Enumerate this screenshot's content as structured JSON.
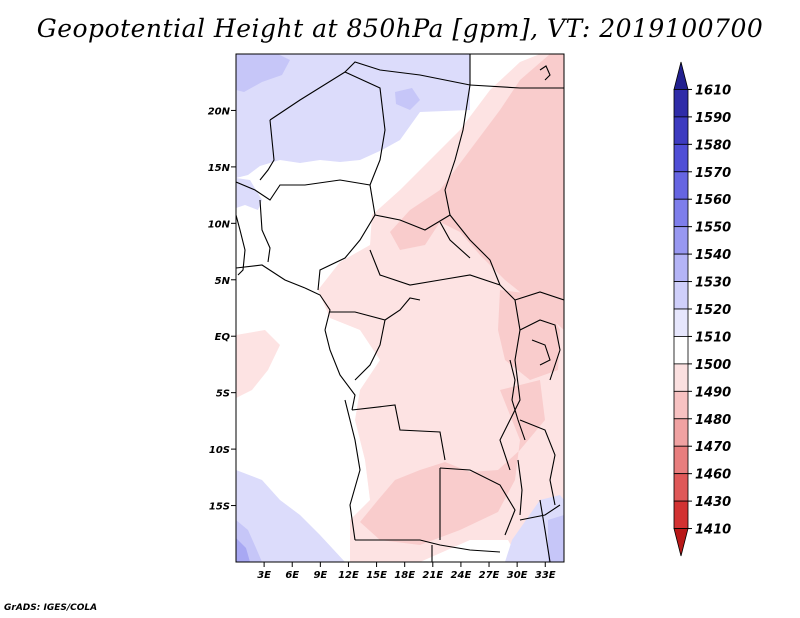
{
  "title": "Geopotential Height at 850hPa [gpm], VT: 2019100700",
  "credit": "GrADS: IGES/COLA",
  "map": {
    "lon_range": [
      0,
      35
    ],
    "lat_range": [
      -20,
      25
    ],
    "lon_ticks": [
      3,
      6,
      9,
      12,
      15,
      18,
      21,
      24,
      27,
      30,
      33
    ],
    "lon_tick_labels": [
      "3E",
      "6E",
      "9E",
      "12E",
      "15E",
      "18E",
      "21E",
      "24E",
      "27E",
      "30E",
      "33E"
    ],
    "lat_ticks": [
      20,
      15,
      10,
      5,
      0,
      -5,
      -10,
      -15
    ],
    "lat_tick_labels": [
      "20N",
      "15N",
      "10N",
      "5N",
      "EQ",
      "5S",
      "10S",
      "15S"
    ]
  },
  "colorbar": {
    "levels": [
      "1610",
      "1590",
      "1580",
      "1570",
      "1560",
      "1550",
      "1540",
      "1530",
      "1520",
      "1510",
      "1500",
      "1490",
      "1480",
      "1470",
      "1460",
      "1430",
      "1410"
    ],
    "colors": [
      "#22208f",
      "#2f2ca8",
      "#3d3bc0",
      "#4f4ed6",
      "#6665e2",
      "#7e7eeb",
      "#9898f1",
      "#b4b4f6",
      "#cfcffa",
      "#e6e6fc",
      "#ffffff",
      "#fbe0e0",
      "#f7c2c2",
      "#f0a2a2",
      "#e87e7e",
      "#df5858",
      "#d23232",
      "#b81818"
    ]
  },
  "fill_colors": {
    "light_blue": "#dcdcfb",
    "mid_blue": "#c6c6f8",
    "deep_blue": "#a8a8f3",
    "white": "#ffffff",
    "light_pink": "#fde3e3",
    "pink": "#f9cccc"
  }
}
